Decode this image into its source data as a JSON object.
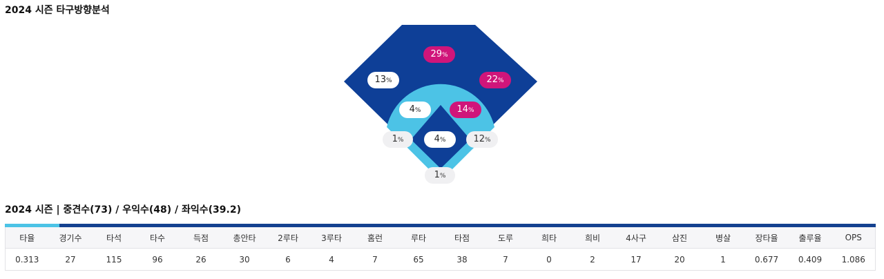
{
  "titles": {
    "direction_title": "2024 시즌 타구방향분석",
    "stats_title": "2024 시즌 | 중견수(73) / 우익수(48) / 좌익수(39.2)"
  },
  "field": {
    "colors": {
      "outfield": "#0e3f97",
      "infield_ring": "#4cc3e6",
      "infield_inner": "#0e3f97",
      "highlight": "#d0157a"
    },
    "labels": [
      {
        "id": "center-field",
        "value": "29",
        "unit": "%",
        "style": "pink"
      },
      {
        "id": "left-field",
        "value": "13",
        "unit": "%",
        "style": "white"
      },
      {
        "id": "right-field",
        "value": "22",
        "unit": "%",
        "style": "pink"
      },
      {
        "id": "shortstop",
        "value": "4",
        "unit": "%",
        "style": "white"
      },
      {
        "id": "second-base",
        "value": "14",
        "unit": "%",
        "style": "pink"
      },
      {
        "id": "third-base",
        "value": "1",
        "unit": "%",
        "style": "grey"
      },
      {
        "id": "pitcher",
        "value": "4",
        "unit": "%",
        "style": "white"
      },
      {
        "id": "first-base",
        "value": "12",
        "unit": "%",
        "style": "grey"
      },
      {
        "id": "catcher",
        "value": "1",
        "unit": "%",
        "style": "grey"
      }
    ]
  },
  "stats": {
    "headers": [
      "타율",
      "경기수",
      "타석",
      "타수",
      "득점",
      "총안타",
      "2루타",
      "3루타",
      "홈런",
      "루타",
      "타점",
      "도루",
      "희타",
      "희비",
      "4사구",
      "삼진",
      "병살",
      "장타율",
      "출루율",
      "OPS"
    ],
    "values": [
      "0.313",
      "27",
      "115",
      "96",
      "26",
      "30",
      "6",
      "4",
      "7",
      "65",
      "38",
      "7",
      "0",
      "2",
      "17",
      "20",
      "1",
      "0.677",
      "0.409",
      "1.086"
    ]
  }
}
